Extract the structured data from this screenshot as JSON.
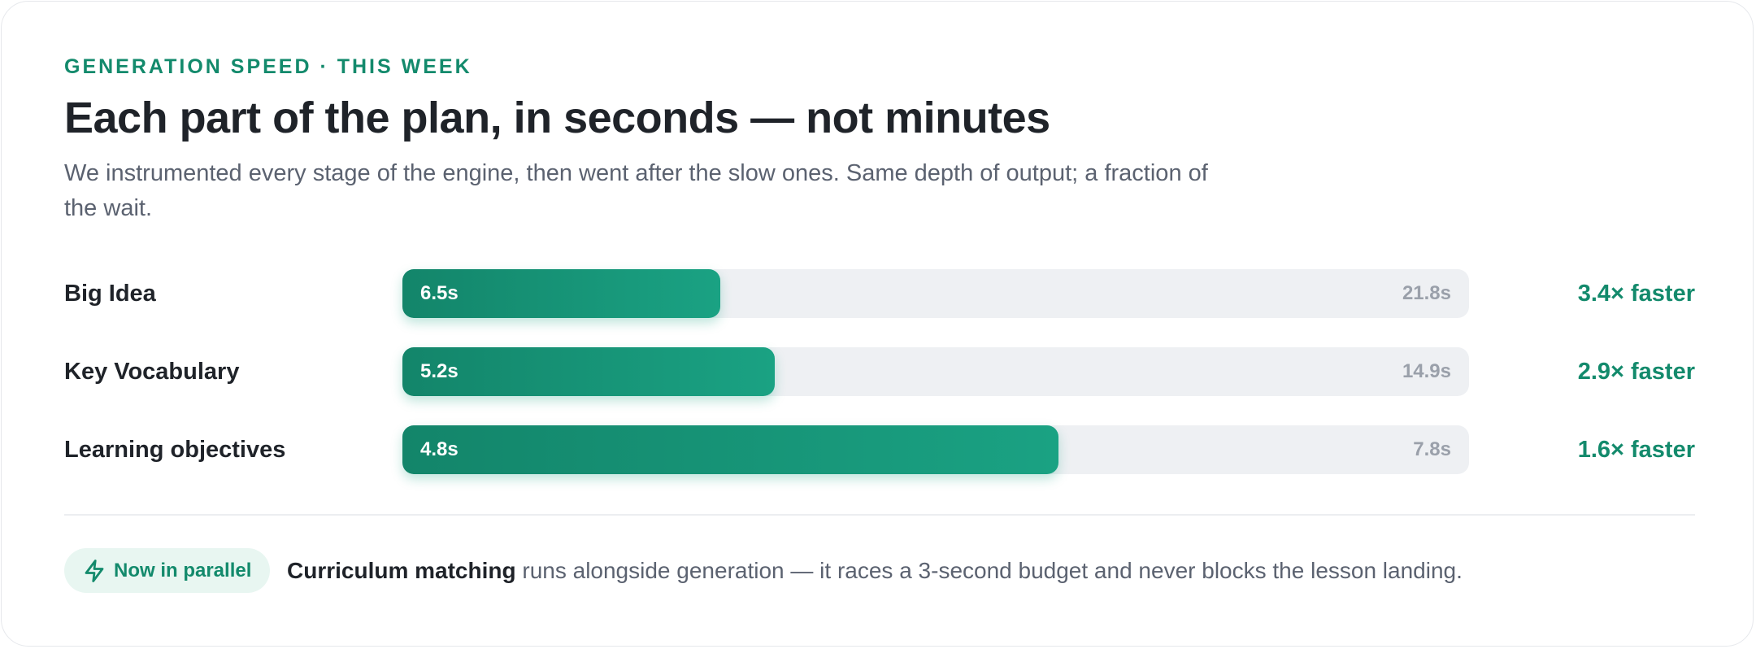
{
  "header": {
    "eyebrow": "GENERATION SPEED · THIS WEEK",
    "title": "Each part of the plan, in seconds — not minutes",
    "subtitle": "We instrumented every stage of the engine, then went after the slow ones. Same depth of output; a fraction of the wait."
  },
  "chart_data": {
    "type": "bar",
    "orientation": "horizontal",
    "title": "",
    "xlabel": "",
    "ylabel": "",
    "unit": "s",
    "categories": [
      "Big Idea",
      "Key Vocabulary",
      "Learning objectives"
    ],
    "series": [
      {
        "name": "",
        "values": [
          6.5,
          5.2,
          4.8
        ],
        "labels": [
          "6.5s",
          "5.2s",
          "4.8s"
        ]
      },
      {
        "name": "",
        "values": [
          21.8,
          14.9,
          7.8
        ],
        "labels": [
          "21.8s",
          "14.9s",
          "7.8s"
        ]
      }
    ],
    "speedup_labels": [
      "3.4× faster",
      "2.9× faster",
      "1.6× faster"
    ],
    "grid": false,
    "legend": "none"
  },
  "note": {
    "badge_icon": "lightning-bolt-icon",
    "badge_label": "Now in parallel",
    "strong_text": "Curriculum matching",
    "text": " runs alongside generation — it races a 3-second budget and never blocks the lesson landing."
  },
  "colors": {
    "accent": "#138a6c",
    "bar_start": "#13856a",
    "bar_end": "#1aa283",
    "track": "#eef0f3",
    "badge_bg": "#e8f6f1"
  }
}
